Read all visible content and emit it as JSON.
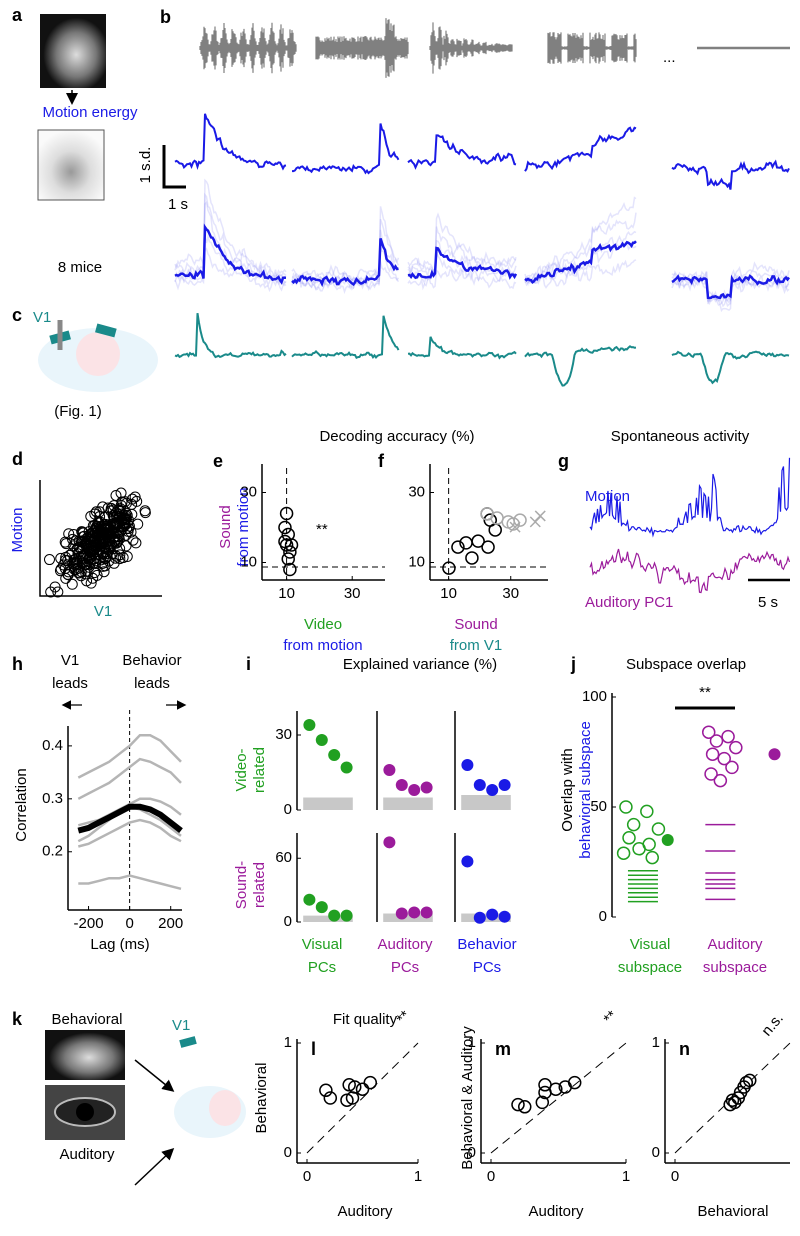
{
  "figure": {
    "letters": [
      "a",
      "b",
      "c",
      "d",
      "g",
      "k"
    ],
    "motion_energy": "Motion energy",
    "ellipsis": "...",
    "scale_sd": "1 s.d.",
    "scale_s": "1 s",
    "mice": "8 mice",
    "v1_c": "V1",
    "fig_ref": "(Fig. 1)",
    "d_ylabel": "Motion",
    "d_xlabel": "V1",
    "decoding_title": "Decoding accuracy (%)",
    "spont_title": "Spontaneous activity",
    "g_motion": "Motion",
    "g_auditory": "Auditory PC1",
    "g_scale": "5 s",
    "explained_title": "Explained variance (%)",
    "subspace_title": "Subspace overlap",
    "k_behavioral": "Behavioral",
    "k_auditory": "Auditory",
    "k_v1": "V1",
    "fit_title": "Fit quality"
  },
  "chart_data": [
    {
      "type": "scatter",
      "letter": "e",
      "ylabel": [
        "Sound",
        "from motion"
      ],
      "xlabel": [
        "Video",
        "from motion"
      ],
      "annotation": "**",
      "xlim": [
        2.5,
        40
      ],
      "ylim": [
        5,
        37
      ],
      "xticks": [
        10,
        30
      ],
      "yticks": [
        10,
        30
      ],
      "reference": {
        "x": 10,
        "y": 8.7
      },
      "series": [
        {
          "color": "#000000",
          "marker": "open-circle",
          "x": [
            10,
            9.5,
            10.5,
            9.5,
            10,
            11.5,
            11,
            10.5,
            11
          ],
          "y": [
            24,
            20,
            18,
            16,
            15,
            15,
            13,
            11,
            8
          ]
        }
      ]
    },
    {
      "type": "scatter",
      "letter": "f",
      "xlabel": [
        "Sound",
        "from V1"
      ],
      "xlim": [
        4,
        42
      ],
      "ylim": [
        5,
        37
      ],
      "xticks": [
        10,
        30
      ],
      "yticks": [
        10,
        30
      ],
      "reference": {
        "x": 10,
        "y": 8.7
      },
      "series": [
        {
          "color": "#000000",
          "marker": "open-circle",
          "x": [
            10.1,
            13,
            15.6,
            19.5,
            17.5,
            22.7,
            25,
            23.4,
            22.4
          ],
          "y": [
            8.4,
            14.4,
            15.6,
            16.1,
            11.3,
            14.4,
            19.3,
            22.1,
            23.9
          ]
        },
        {
          "color": "#aaaaaa",
          "marker": "open-circle",
          "x": [
            22.4,
            25.6,
            29.2,
            33,
            30.8
          ],
          "y": [
            23.9,
            22.7,
            21.6,
            22.1,
            21
          ]
        },
        {
          "color": "#aaaaaa",
          "marker": "cross",
          "x": [
            39.5,
            37.9,
            31.4
          ],
          "y": [
            23.3,
            21.6,
            20.1
          ]
        }
      ]
    },
    {
      "type": "line",
      "letter": "h",
      "ylabel": "Correlation",
      "xlabel": "Lag (ms)",
      "annotations": [
        [
          "V1",
          "leads"
        ],
        [
          "Behavior",
          "leads"
        ]
      ],
      "xlim": [
        -300,
        255
      ],
      "ylim": [
        0.09,
        0.43
      ],
      "xticks": [
        -200,
        0,
        200
      ],
      "yticks": [
        0.2,
        0.3,
        0.4
      ],
      "x": [
        -250,
        -200,
        -150,
        -100,
        -50,
        0,
        50,
        100,
        150,
        200,
        250
      ],
      "series": [
        {
          "color": "#b5b5b5",
          "line_width": 2.5,
          "values": [
            0.34,
            0.35,
            0.36,
            0.37,
            0.385,
            0.4,
            0.42,
            0.42,
            0.41,
            0.39,
            0.37
          ]
        },
        {
          "color": "#b5b5b5",
          "line_width": 2.5,
          "values": [
            0.3,
            0.31,
            0.32,
            0.33,
            0.345,
            0.36,
            0.375,
            0.37,
            0.36,
            0.35,
            0.33
          ]
        },
        {
          "color": "#b5b5b5",
          "line_width": 2.5,
          "values": [
            0.25,
            0.255,
            0.26,
            0.27,
            0.28,
            0.29,
            0.3,
            0.3,
            0.295,
            0.285,
            0.27
          ]
        },
        {
          "color": "#b5b5b5",
          "line_width": 2.5,
          "values": [
            0.22,
            0.23,
            0.245,
            0.26,
            0.275,
            0.285,
            0.28,
            0.27,
            0.26,
            0.245,
            0.23
          ]
        },
        {
          "color": "#b5b5b5",
          "line_width": 2.5,
          "values": [
            0.21,
            0.215,
            0.225,
            0.235,
            0.245,
            0.255,
            0.26,
            0.255,
            0.245,
            0.23,
            0.22
          ]
        },
        {
          "color": "#b5b5b5",
          "line_width": 2.5,
          "values": [
            0.14,
            0.14,
            0.145,
            0.15,
            0.15,
            0.155,
            0.15,
            0.145,
            0.14,
            0.135,
            0.13
          ]
        },
        {
          "color": "#000000",
          "line_width": 6,
          "values": [
            0.24,
            0.245,
            0.255,
            0.265,
            0.275,
            0.285,
            0.285,
            0.28,
            0.27,
            0.255,
            0.24
          ]
        }
      ]
    },
    {
      "type": "scatter",
      "letter": "i",
      "ylabel": [
        "Video-",
        "related"
      ],
      "xlim": [
        0,
        5
      ],
      "ylim": [
        0,
        38
      ],
      "yticks": [
        0,
        30
      ],
      "shuffle": 5,
      "series": [
        {
          "color": "#21a021",
          "marker": "filled-circle",
          "x": [
            1,
            2,
            3,
            4
          ],
          "y": [
            34,
            28,
            22,
            17
          ]
        }
      ]
    },
    {
      "type": "scatter",
      "xlim": [
        0,
        5
      ],
      "ylim": [
        0,
        38
      ],
      "shuffle": 5,
      "series": [
        {
          "color": "#9b1b9b",
          "marker": "filled-circle",
          "x": [
            1,
            2,
            3,
            4
          ],
          "y": [
            16,
            10,
            8,
            9
          ]
        }
      ]
    },
    {
      "type": "scatter",
      "xlim": [
        0,
        5
      ],
      "ylim": [
        0,
        38
      ],
      "shuffle": 6,
      "series": [
        {
          "color": "#1a1ae6",
          "marker": "filled-circle",
          "x": [
            1,
            2,
            3,
            4
          ],
          "y": [
            18,
            10,
            8,
            10
          ]
        }
      ]
    },
    {
      "type": "scatter",
      "ylabel": [
        "Sound-",
        "related"
      ],
      "xlabel": [
        "Visual",
        "PCs"
      ],
      "xlim": [
        0,
        5
      ],
      "ylim": [
        0,
        80
      ],
      "yticks": [
        0,
        60
      ],
      "shuffle": 6,
      "series": [
        {
          "color": "#21a021",
          "marker": "filled-circle",
          "x": [
            1,
            2,
            3,
            4
          ],
          "y": [
            21,
            14,
            6,
            6
          ]
        }
      ]
    },
    {
      "type": "scatter",
      "xlabel": [
        "Auditory",
        "PCs"
      ],
      "xlim": [
        0,
        5
      ],
      "ylim": [
        0,
        80
      ],
      "shuffle": 8,
      "series": [
        {
          "color": "#9b1b9b",
          "marker": "filled-circle",
          "x": [
            1,
            2,
            3,
            4
          ],
          "y": [
            75,
            8,
            9,
            9
          ]
        }
      ]
    },
    {
      "type": "scatter",
      "xlabel": [
        "Behavior",
        "PCs"
      ],
      "xlim": [
        0,
        5
      ],
      "ylim": [
        0,
        80
      ],
      "shuffle": 8,
      "series": [
        {
          "color": "#1a1ae6",
          "marker": "filled-circle",
          "x": [
            1,
            2,
            3,
            4
          ],
          "y": [
            57,
            4,
            7,
            5
          ]
        }
      ]
    },
    {
      "type": "scatter",
      "letter": "j",
      "ylabel": [
        "Overlap with",
        "behavioral subspace"
      ],
      "annotation": "**",
      "xlabel": [
        [
          "Visual",
          "subspace"
        ],
        [
          "Auditory",
          "subspace"
        ]
      ],
      "xlim": [
        0.6,
        2.9
      ],
      "ylim": [
        0,
        100
      ],
      "yticks": [
        0,
        50,
        100
      ],
      "series": [
        {
          "color": "#21a021",
          "marker": "open-circle",
          "x": [
            0.78,
            1.05,
            0.88,
            1.2,
            0.82,
            1.08,
            0.95,
            0.75,
            1.12
          ],
          "y": [
            50,
            48,
            42,
            40,
            36,
            33,
            31,
            29,
            27
          ]
        },
        {
          "color": "#21a021",
          "marker": "filled-circle",
          "x": [
            1.32
          ],
          "y": [
            35
          ]
        },
        {
          "color": "#21a021",
          "marker": "hline",
          "x": [
            1,
            1,
            1,
            1,
            1,
            1,
            1,
            1
          ],
          "y": [
            21,
            19,
            17,
            15,
            13,
            11,
            9,
            7
          ]
        },
        {
          "color": "#9b1b9b",
          "marker": "open-circle",
          "x": [
            1.85,
            2.1,
            1.95,
            2.2,
            1.9,
            2.05,
            2.15,
            1.88,
            2.0
          ],
          "y": [
            84,
            82,
            80,
            77,
            74,
            72,
            68,
            65,
            62
          ]
        },
        {
          "color": "#9b1b9b",
          "marker": "filled-circle",
          "x": [
            2.7
          ],
          "y": [
            74
          ]
        },
        {
          "color": "#9b1b9b",
          "marker": "hline",
          "x": [
            2,
            2,
            2,
            2,
            2,
            2,
            2
          ],
          "y": [
            42,
            30,
            20,
            17,
            15,
            13,
            8
          ]
        }
      ]
    },
    {
      "type": "scatter",
      "letter": "l",
      "ylabel": "Behavioral",
      "xlabel": "Auditory",
      "annotation": "**",
      "diagonal": true,
      "xlim": [
        0,
        1
      ],
      "ylim": [
        0,
        1
      ],
      "xticks": [
        0,
        1
      ],
      "yticks": [
        0,
        1
      ],
      "series": [
        {
          "color": "#000000",
          "marker": "open-circle",
          "x": [
            0.17,
            0.21,
            0.36,
            0.41,
            0.43,
            0.5,
            0.57,
            0.38
          ],
          "y": [
            0.57,
            0.5,
            0.48,
            0.5,
            0.6,
            0.58,
            0.64,
            0.62
          ]
        }
      ]
    },
    {
      "type": "scatter",
      "letter": "m",
      "ylabel": "Behavioral & Auditory",
      "xlabel": "Auditory",
      "annotation": "**",
      "diagonal": true,
      "xlim": [
        0,
        1
      ],
      "ylim": [
        0,
        1
      ],
      "xticks": [
        0,
        1
      ],
      "yticks": [
        0,
        1
      ],
      "series": [
        {
          "color": "#000000",
          "marker": "open-circle",
          "x": [
            0.2,
            0.25,
            0.38,
            0.4,
            0.48,
            0.55,
            0.62,
            0.4
          ],
          "y": [
            0.44,
            0.42,
            0.46,
            0.55,
            0.58,
            0.6,
            0.64,
            0.62
          ]
        }
      ]
    },
    {
      "type": "scatter",
      "letter": "n",
      "ylabel": "Behavioral",
      "xlabel": "Behavioral",
      "annotation": "n.s.",
      "diagonal": true,
      "xlim": [
        0,
        1
      ],
      "ylim": [
        0,
        1
      ],
      "xticks": [
        0
      ],
      "yticks": [
        0,
        1
      ],
      "series": [
        {
          "color": "#000000",
          "marker": "open-circle",
          "x": [
            0.48,
            0.5,
            0.55,
            0.57,
            0.6,
            0.62,
            0.65,
            0.52
          ],
          "y": [
            0.44,
            0.48,
            0.5,
            0.55,
            0.6,
            0.64,
            0.66,
            0.46
          ]
        }
      ]
    }
  ]
}
